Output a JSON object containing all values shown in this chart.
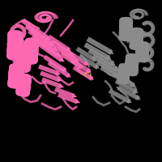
{
  "background_color": "#000000",
  "chain_a_color": [
    255,
    105,
    180
  ],
  "chain_b_color": [
    140,
    140,
    140
  ],
  "figsize": [
    2.0,
    2.0
  ],
  "dpi": 100,
  "seed": 12345
}
